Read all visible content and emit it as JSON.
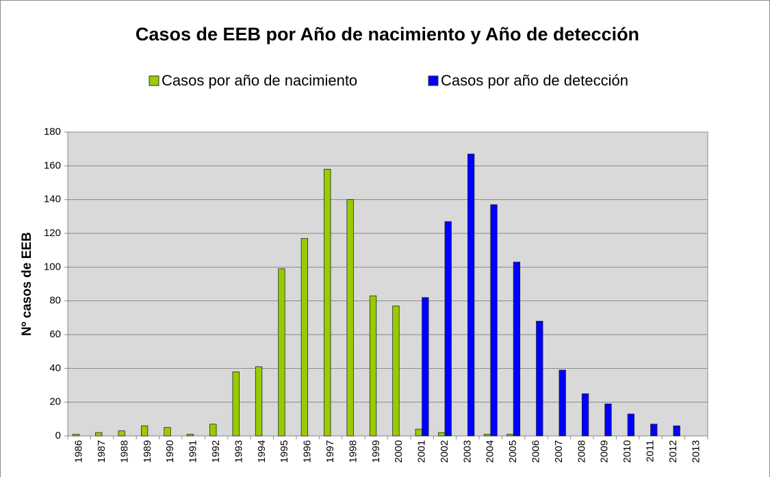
{
  "chart_data": {
    "type": "bar",
    "title": "Casos de EEB por Año de nacimiento y Año de detección",
    "y_label": "Nº casos de EEB",
    "categories": [
      "1986",
      "1987",
      "1988",
      "1989",
      "1990",
      "1991",
      "1992",
      "1993",
      "1994",
      "1995",
      "1996",
      "1997",
      "1998",
      "1999",
      "2000",
      "2001",
      "2002",
      "2003",
      "2004",
      "2005",
      "2006",
      "2007",
      "2008",
      "2009",
      "2010",
      "2011",
      "2012",
      "2013"
    ],
    "series": [
      {
        "name": "Casos por año de nacimiento",
        "color": "#99cc00",
        "values": [
          1,
          2,
          3,
          6,
          5,
          1,
          7,
          38,
          41,
          99,
          117,
          158,
          140,
          83,
          77,
          4,
          2,
          0,
          1,
          1,
          0,
          0,
          0,
          0,
          0,
          0,
          0,
          0
        ]
      },
      {
        "name": "Casos por año de detección",
        "color": "#0000ff",
        "values": [
          0,
          0,
          0,
          0,
          0,
          0,
          0,
          0,
          0,
          0,
          0,
          0,
          0,
          0,
          0,
          82,
          127,
          167,
          137,
          103,
          68,
          39,
          25,
          19,
          13,
          7,
          6,
          0
        ]
      }
    ],
    "ylim": [
      0,
      180
    ],
    "yticks": [
      0,
      20,
      40,
      60,
      80,
      100,
      120,
      140,
      160,
      180
    ],
    "grid": true,
    "legend": "top"
  }
}
